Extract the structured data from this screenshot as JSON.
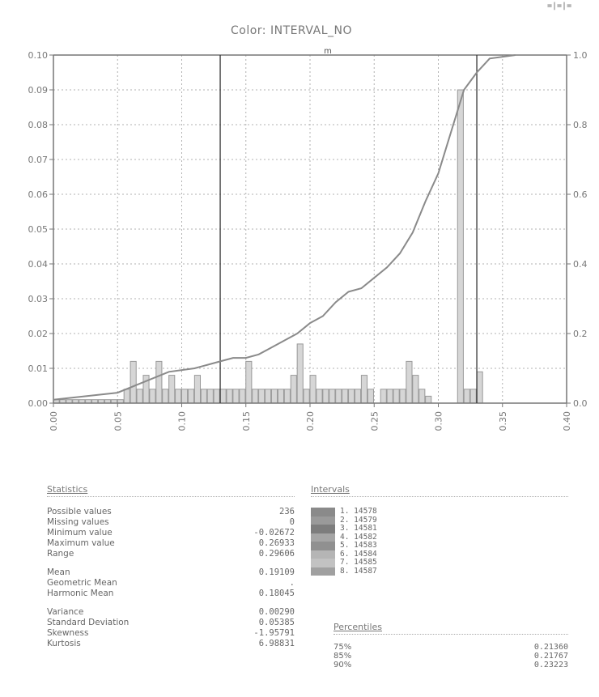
{
  "chart_data": {
    "type": "bar",
    "title": "Color: INTERVAL_NO",
    "xlabel": "",
    "ylabel": "",
    "xlim": [
      0.0,
      0.4
    ],
    "ylim": [
      0.0,
      0.1
    ],
    "y2lim": [
      0.0,
      1.0
    ],
    "x_ticks": [
      "0.00",
      "0.05",
      "0.10",
      "0.15",
      "0.20",
      "0.25",
      "0.30",
      "0.35",
      "0.40"
    ],
    "y_ticks": [
      "0.00",
      "0.01",
      "0.02",
      "0.03",
      "0.04",
      "0.05",
      "0.06",
      "0.07",
      "0.08",
      "0.09",
      "0.10"
    ],
    "y2_ticks": [
      "0.0",
      "0.2",
      "0.4",
      "0.6",
      "0.8",
      "1.0"
    ],
    "grid": true,
    "bin_width": 0.005,
    "bars": [
      {
        "x": 0.0,
        "y": 0.001
      },
      {
        "x": 0.005,
        "y": 0.001
      },
      {
        "x": 0.01,
        "y": 0.001
      },
      {
        "x": 0.015,
        "y": 0.001
      },
      {
        "x": 0.02,
        "y": 0.001
      },
      {
        "x": 0.025,
        "y": 0.001
      },
      {
        "x": 0.03,
        "y": 0.001
      },
      {
        "x": 0.035,
        "y": 0.001
      },
      {
        "x": 0.04,
        "y": 0.001
      },
      {
        "x": 0.045,
        "y": 0.001
      },
      {
        "x": 0.05,
        "y": 0.001
      },
      {
        "x": 0.055,
        "y": 0.004
      },
      {
        "x": 0.06,
        "y": 0.012
      },
      {
        "x": 0.065,
        "y": 0.004
      },
      {
        "x": 0.07,
        "y": 0.008
      },
      {
        "x": 0.075,
        "y": 0.004
      },
      {
        "x": 0.08,
        "y": 0.012
      },
      {
        "x": 0.085,
        "y": 0.004
      },
      {
        "x": 0.09,
        "y": 0.008
      },
      {
        "x": 0.095,
        "y": 0.004
      },
      {
        "x": 0.1,
        "y": 0.004
      },
      {
        "x": 0.105,
        "y": 0.004
      },
      {
        "x": 0.11,
        "y": 0.008
      },
      {
        "x": 0.115,
        "y": 0.004
      },
      {
        "x": 0.12,
        "y": 0.004
      },
      {
        "x": 0.125,
        "y": 0.004
      },
      {
        "x": 0.13,
        "y": 0.004
      },
      {
        "x": 0.135,
        "y": 0.004
      },
      {
        "x": 0.14,
        "y": 0.004
      },
      {
        "x": 0.145,
        "y": 0.004
      },
      {
        "x": 0.15,
        "y": 0.012
      },
      {
        "x": 0.155,
        "y": 0.004
      },
      {
        "x": 0.16,
        "y": 0.004
      },
      {
        "x": 0.165,
        "y": 0.004
      },
      {
        "x": 0.17,
        "y": 0.004
      },
      {
        "x": 0.175,
        "y": 0.004
      },
      {
        "x": 0.18,
        "y": 0.004
      },
      {
        "x": 0.185,
        "y": 0.008
      },
      {
        "x": 0.19,
        "y": 0.017
      },
      {
        "x": 0.195,
        "y": 0.004
      },
      {
        "x": 0.2,
        "y": 0.008
      },
      {
        "x": 0.205,
        "y": 0.004
      },
      {
        "x": 0.21,
        "y": 0.004
      },
      {
        "x": 0.215,
        "y": 0.004
      },
      {
        "x": 0.22,
        "y": 0.004
      },
      {
        "x": 0.225,
        "y": 0.004
      },
      {
        "x": 0.23,
        "y": 0.004
      },
      {
        "x": 0.235,
        "y": 0.004
      },
      {
        "x": 0.24,
        "y": 0.008
      },
      {
        "x": 0.245,
        "y": 0.004
      },
      {
        "x": 0.25,
        "y": 0.0
      },
      {
        "x": 0.255,
        "y": 0.004
      },
      {
        "x": 0.26,
        "y": 0.004
      },
      {
        "x": 0.265,
        "y": 0.004
      },
      {
        "x": 0.27,
        "y": 0.004
      },
      {
        "x": 0.275,
        "y": 0.012
      },
      {
        "x": 0.28,
        "y": 0.008
      },
      {
        "x": 0.285,
        "y": 0.004
      },
      {
        "x": 0.29,
        "y": 0.002
      },
      {
        "x": 0.315,
        "y": 0.09
      },
      {
        "x": 0.32,
        "y": 0.004
      },
      {
        "x": 0.325,
        "y": 0.004
      },
      {
        "x": 0.33,
        "y": 0.009
      }
    ],
    "cumulative": {
      "name": "",
      "x": [
        0.0,
        0.05,
        0.07,
        0.09,
        0.11,
        0.13,
        0.14,
        0.15,
        0.16,
        0.17,
        0.18,
        0.19,
        0.2,
        0.21,
        0.22,
        0.23,
        0.24,
        0.25,
        0.26,
        0.27,
        0.28,
        0.29,
        0.3,
        0.31,
        0.32,
        0.33,
        0.335,
        0.34,
        0.36
      ],
      "y": [
        0.01,
        0.03,
        0.06,
        0.09,
        0.1,
        0.12,
        0.13,
        0.13,
        0.14,
        0.16,
        0.18,
        0.2,
        0.23,
        0.25,
        0.29,
        0.32,
        0.33,
        0.36,
        0.39,
        0.43,
        0.49,
        0.58,
        0.66,
        0.78,
        0.9,
        0.95,
        0.97,
        0.99,
        1.0
      ]
    },
    "vlines": [
      0.13,
      0.33
    ],
    "marker": "m"
  },
  "statistics": {
    "heading": "Statistics",
    "rows": [
      {
        "label": "Possible values",
        "value": "236"
      },
      {
        "label": "Missing values",
        "value": "0"
      },
      {
        "label": "Minimum value",
        "value": "-0.02672"
      },
      {
        "label": "Maximum value",
        "value": "0.26933"
      },
      {
        "label": "Range",
        "value": "0.29606"
      }
    ],
    "rows2": [
      {
        "label": "Mean",
        "value": "0.19109"
      },
      {
        "label": "Geometric Mean",
        "value": "."
      },
      {
        "label": "Harmonic Mean",
        "value": "0.18045"
      }
    ],
    "rows3": [
      {
        "label": "Variance",
        "value": "0.00290"
      },
      {
        "label": "Standard Deviation",
        "value": "0.05385"
      },
      {
        "label": "Skewness",
        "value": "-1.95791"
      },
      {
        "label": "Kurtosis",
        "value": "6.98831"
      }
    ]
  },
  "intervals": {
    "heading": "Intervals",
    "items": [
      {
        "label": "1. 14578",
        "color": "#8a8a8a"
      },
      {
        "label": "2. 14579",
        "color": "#9a9a9a"
      },
      {
        "label": "3. 14581",
        "color": "#7d7d7d"
      },
      {
        "label": "4. 14582",
        "color": "#a5a5a5"
      },
      {
        "label": "5. 14583",
        "color": "#909090"
      },
      {
        "label": "6. 14584",
        "color": "#b5b5b5"
      },
      {
        "label": "7. 14585",
        "color": "#c2c2c2"
      },
      {
        "label": "8. 14587",
        "color": "#a0a0a0"
      }
    ]
  },
  "percentiles": {
    "heading": "Percentiles",
    "rows": [
      {
        "label": "75%",
        "value": "0.21360"
      },
      {
        "label": "85%",
        "value": "0.21767"
      },
      {
        "label": "90%",
        "value": "0.23223"
      }
    ]
  },
  "colors": {
    "axis": "#777777",
    "grid": "#b0b0b0",
    "bar": "#999999",
    "bar_fill": "#d6d6d6",
    "curve": "#8a8a8a",
    "vline": "#333333"
  },
  "corner_glyph": "=|=|="
}
